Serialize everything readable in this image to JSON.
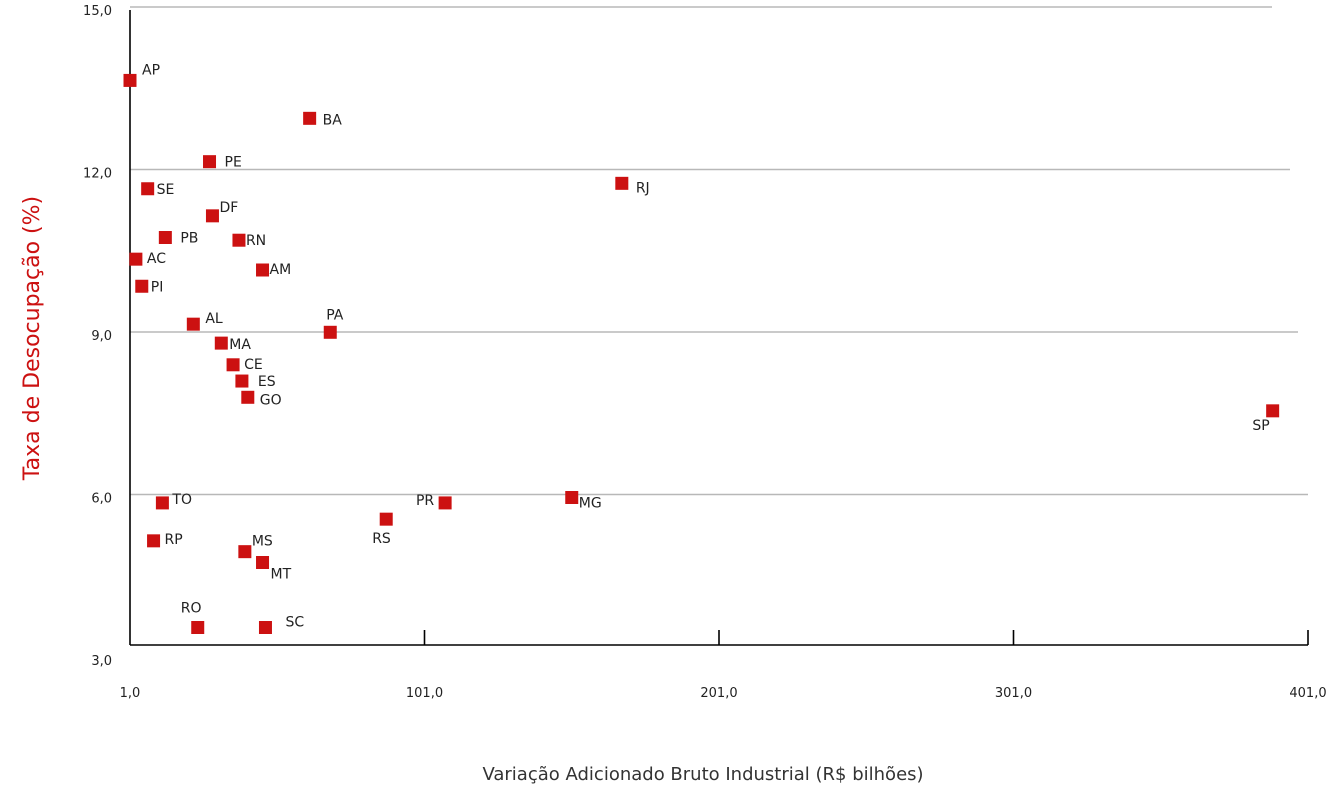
{
  "chart_data": {
    "type": "scatter",
    "title": "",
    "xlabel": "Variação Adicionado Bruto Industrial (R$ bilhões)",
    "ylabel": "Taxa de Desocupação (%)",
    "xlim": [
      1.0,
      401.0
    ],
    "ylim": [
      3.0,
      15.0
    ],
    "x_ticks": [
      "1,0",
      "101,0",
      "201,0",
      "301,0",
      "401,0"
    ],
    "y_ticks": [
      "3,0",
      "6,0",
      "9,0",
      "12,0",
      "15,0"
    ],
    "grid": "horizontal",
    "marker_color": "#cc1111",
    "points": [
      {
        "label": "AP",
        "x": 1.0,
        "y": 13.7
      },
      {
        "label": "BA",
        "x": 62.0,
        "y": 13.0
      },
      {
        "label": "PE",
        "x": 28.0,
        "y": 12.2
      },
      {
        "label": "RJ",
        "x": 168.0,
        "y": 11.8
      },
      {
        "label": "SE",
        "x": 7.0,
        "y": 11.7
      },
      {
        "label": "DF",
        "x": 29.0,
        "y": 11.2
      },
      {
        "label": "PB",
        "x": 13.0,
        "y": 10.8
      },
      {
        "label": "RN",
        "x": 38.0,
        "y": 10.75
      },
      {
        "label": "AC",
        "x": 3.0,
        "y": 10.4
      },
      {
        "label": "AM",
        "x": 46.0,
        "y": 10.2
      },
      {
        "label": "PI",
        "x": 5.0,
        "y": 9.9
      },
      {
        "label": "AL",
        "x": 22.5,
        "y": 9.2
      },
      {
        "label": "PA",
        "x": 69.0,
        "y": 9.05
      },
      {
        "label": "MA",
        "x": 32.0,
        "y": 8.85
      },
      {
        "label": "CE",
        "x": 36.0,
        "y": 8.45
      },
      {
        "label": "ES",
        "x": 39.0,
        "y": 8.15
      },
      {
        "label": "GO",
        "x": 41.0,
        "y": 7.85
      },
      {
        "label": "SP",
        "x": 389.0,
        "y": 7.6
      },
      {
        "label": "MG",
        "x": 151.0,
        "y": 6.0
      },
      {
        "label": "TO",
        "x": 12.0,
        "y": 5.9
      },
      {
        "label": "PR",
        "x": 108.0,
        "y": 5.9
      },
      {
        "label": "RS",
        "x": 88.0,
        "y": 5.6
      },
      {
        "label": "RP",
        "x": 9.0,
        "y": 5.2
      },
      {
        "label": "MS",
        "x": 40.0,
        "y": 5.0
      },
      {
        "label": "MT",
        "x": 46.0,
        "y": 4.8
      },
      {
        "label": "RO",
        "x": 24.0,
        "y": 3.6
      },
      {
        "label": "SC",
        "x": 47.0,
        "y": 3.6
      }
    ]
  }
}
